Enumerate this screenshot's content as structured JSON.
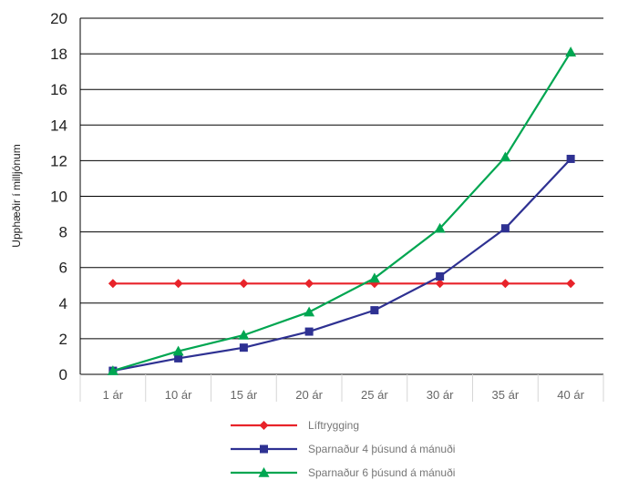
{
  "chart_data": {
    "type": "line",
    "ylabel": "Upphæðir í milljónum",
    "ylim": [
      0,
      20
    ],
    "yticks": [
      "0",
      "2",
      "4",
      "6",
      "8",
      "10",
      "12",
      "14",
      "16",
      "18",
      "20"
    ],
    "categories": [
      "1 ár",
      "10 ár",
      "15 ár",
      "20 ár",
      "25 ár",
      "30 ár",
      "35 ár",
      "40 ár"
    ],
    "grid": true,
    "legend_position": "bottom",
    "series": [
      {
        "name": "Líftrygging",
        "color": "#e8232a",
        "marker": "diamond",
        "values": [
          5.1,
          5.1,
          5.1,
          5.1,
          5.1,
          5.1,
          5.1,
          5.1
        ]
      },
      {
        "name": "Sparnaður 4 þúsund á mánuði",
        "color": "#2e3192",
        "marker": "square",
        "values": [
          0.2,
          0.9,
          1.5,
          2.4,
          3.6,
          5.5,
          8.2,
          12.1
        ]
      },
      {
        "name": "Sparnaður 6 þúsund á mánuði",
        "color": "#00a651",
        "marker": "triangle",
        "values": [
          0.2,
          1.3,
          2.2,
          3.5,
          5.4,
          8.2,
          12.2,
          18.1
        ]
      }
    ]
  }
}
